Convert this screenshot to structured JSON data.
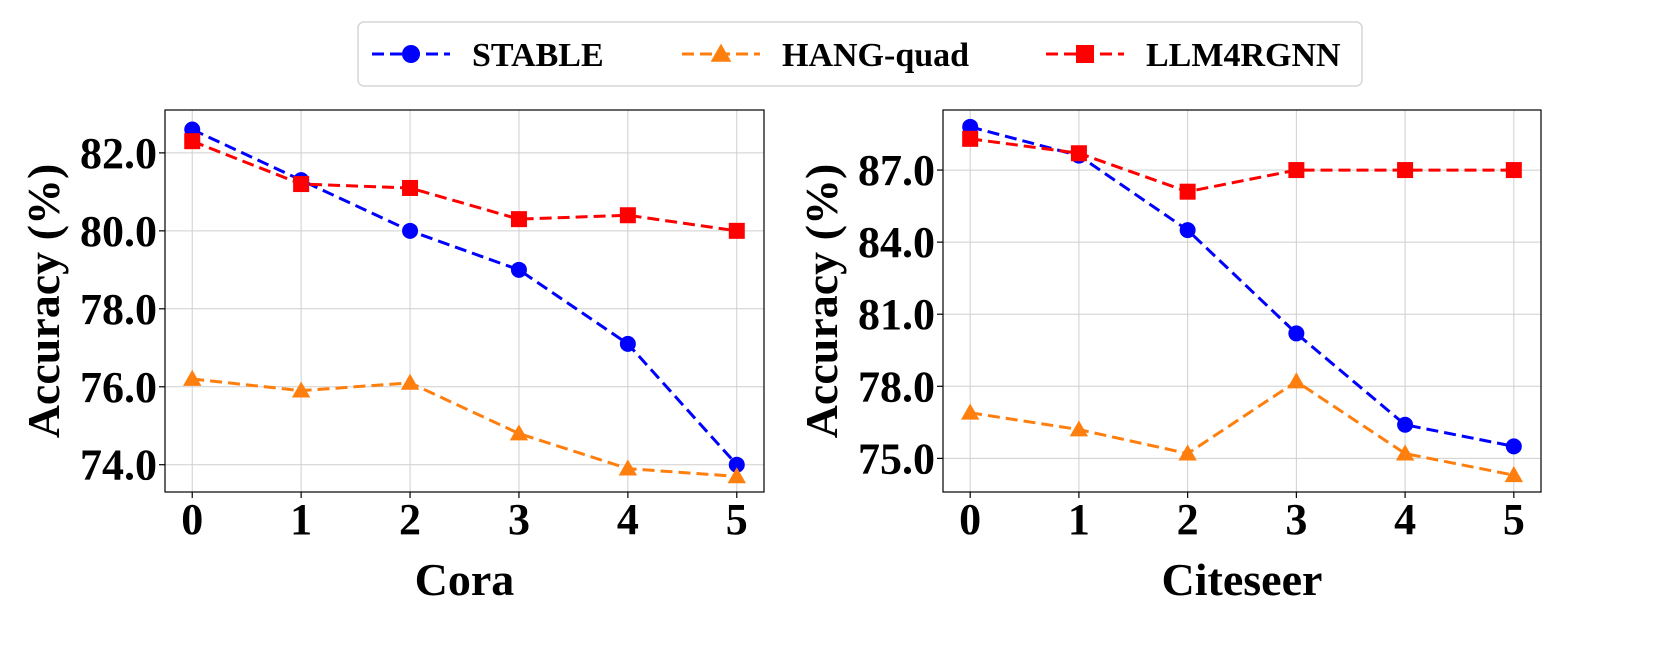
{
  "legend": {
    "placement": "top-center",
    "entries": [
      {
        "name": "STABLE",
        "color": "#0000ff",
        "marker": "circle"
      },
      {
        "name": "HANG-quad",
        "color": "#ff7f0e",
        "marker": "triangle"
      },
      {
        "name": "LLM4RGNN",
        "color": "#ff0000",
        "marker": "square"
      }
    ]
  },
  "chart_data": [
    {
      "type": "line",
      "xlabel": "Cora",
      "ylabel": "Accuracy (%)",
      "x": [
        0,
        1,
        2,
        3,
        4,
        5
      ],
      "xlim": [
        -0.25,
        5.25
      ],
      "ylim": [
        73.3,
        83.1
      ],
      "yticks": [
        74.0,
        76.0,
        78.0,
        80.0,
        82.0
      ],
      "grid": true,
      "series": [
        {
          "name": "STABLE",
          "values": [
            82.6,
            81.3,
            80.0,
            79.0,
            77.1,
            74.0
          ]
        },
        {
          "name": "HANG-quad",
          "values": [
            76.2,
            75.9,
            76.1,
            74.8,
            73.9,
            73.7
          ]
        },
        {
          "name": "LLM4RGNN",
          "values": [
            82.3,
            81.2,
            81.1,
            80.3,
            80.4,
            80.0
          ]
        }
      ]
    },
    {
      "type": "line",
      "xlabel": "Citeseer",
      "ylabel": "Accuracy (%)",
      "x": [
        0,
        1,
        2,
        3,
        4,
        5
      ],
      "xlim": [
        -0.25,
        5.25
      ],
      "ylim": [
        73.6,
        89.5
      ],
      "yticks": [
        75.0,
        78.0,
        81.0,
        84.0,
        87.0
      ],
      "grid": true,
      "series": [
        {
          "name": "STABLE",
          "values": [
            88.8,
            87.6,
            84.5,
            80.2,
            76.4,
            75.5
          ]
        },
        {
          "name": "HANG-quad",
          "values": [
            76.9,
            76.2,
            75.2,
            78.2,
            75.2,
            74.3
          ]
        },
        {
          "name": "LLM4RGNN",
          "values": [
            88.3,
            87.7,
            86.1,
            87.0,
            87.0,
            87.0
          ]
        }
      ]
    }
  ]
}
